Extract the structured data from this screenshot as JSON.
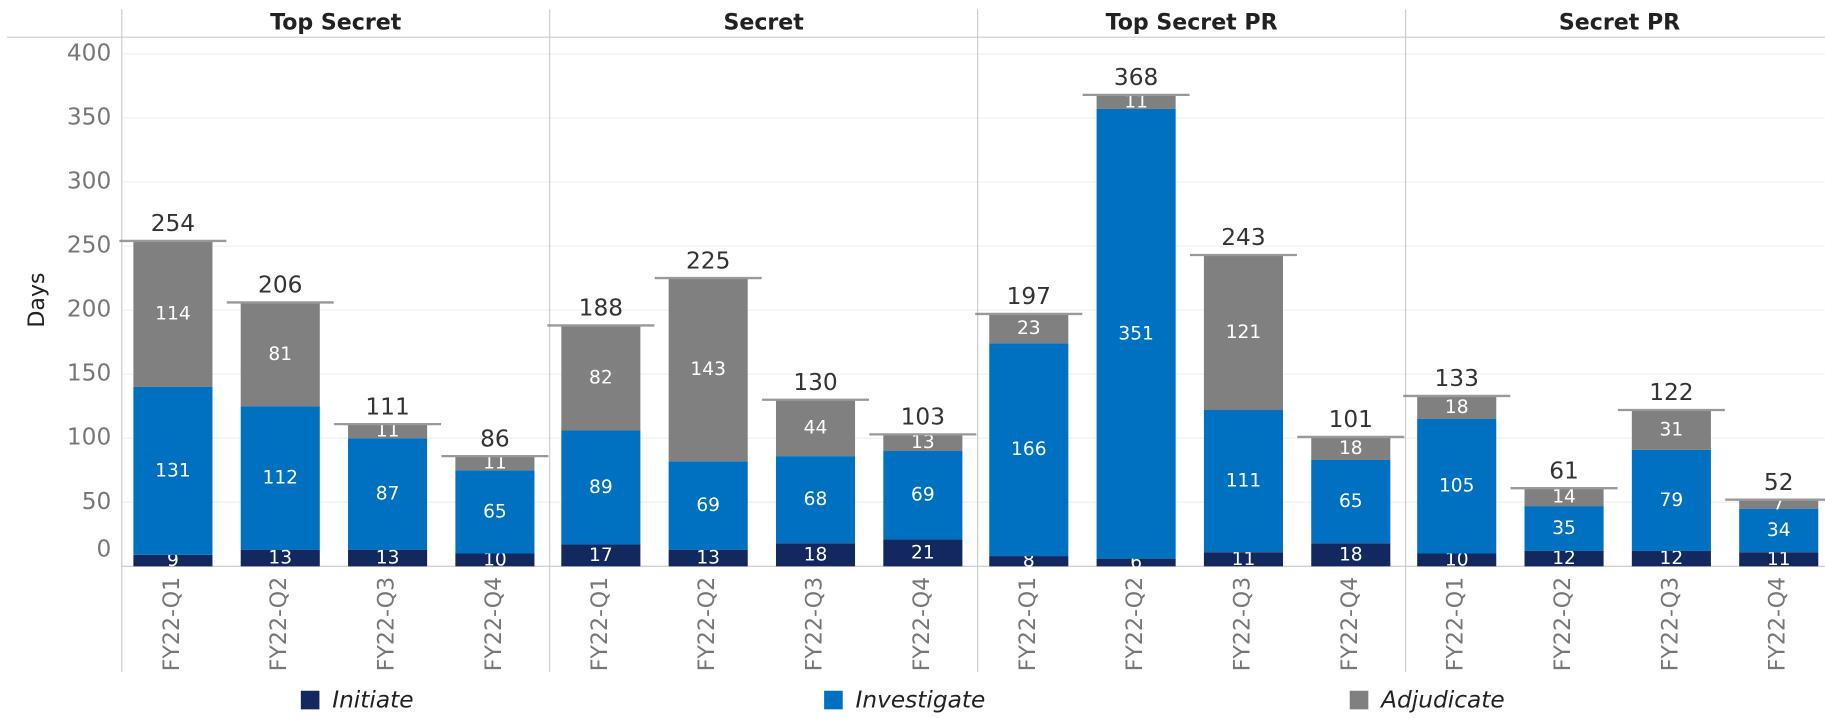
{
  "chart_data": {
    "type": "bar",
    "stacked": true,
    "y_label": "Days",
    "ylim": [
      0,
      413
    ],
    "yticks": [
      0,
      50,
      100,
      150,
      200,
      250,
      300,
      350,
      400
    ],
    "grid": true,
    "legend": "bottom",
    "series": [
      {
        "name": "Initiate",
        "color": "#12285e"
      },
      {
        "name": "Investigate",
        "color": "#0070c0"
      },
      {
        "name": "Adjudicate",
        "color": "#808080"
      }
    ],
    "panels": [
      {
        "title": "Top Secret",
        "categories": [
          "FY22-Q1",
          "FY22-Q2",
          "FY22-Q3",
          "FY22-Q4"
        ],
        "values": [
          [
            9,
            13,
            13,
            10
          ],
          [
            131,
            112,
            87,
            65
          ],
          [
            114,
            81,
            11,
            11
          ]
        ],
        "totals": [
          254,
          206,
          111,
          86
        ]
      },
      {
        "title": "Secret",
        "categories": [
          "FY22-Q1",
          "FY22-Q2",
          "FY22-Q3",
          "FY22-Q4"
        ],
        "values": [
          [
            17,
            13,
            18,
            21
          ],
          [
            89,
            69,
            68,
            69
          ],
          [
            82,
            143,
            44,
            13
          ]
        ],
        "totals": [
          188,
          225,
          130,
          103
        ]
      },
      {
        "title": "Top Secret PR",
        "categories": [
          "FY22-Q1",
          "FY22-Q2",
          "FY22-Q3",
          "FY22-Q4"
        ],
        "values": [
          [
            8,
            6,
            11,
            18
          ],
          [
            166,
            351,
            111,
            65
          ],
          [
            23,
            11,
            121,
            18
          ]
        ],
        "totals": [
          197,
          368,
          243,
          101
        ]
      },
      {
        "title": "Secret PR",
        "categories": [
          "FY22-Q1",
          "FY22-Q2",
          "FY22-Q3",
          "FY22-Q4"
        ],
        "values": [
          [
            10,
            12,
            12,
            11
          ],
          [
            105,
            35,
            79,
            34
          ],
          [
            18,
            14,
            31,
            7
          ]
        ],
        "totals": [
          133,
          61,
          122,
          52
        ]
      }
    ]
  }
}
